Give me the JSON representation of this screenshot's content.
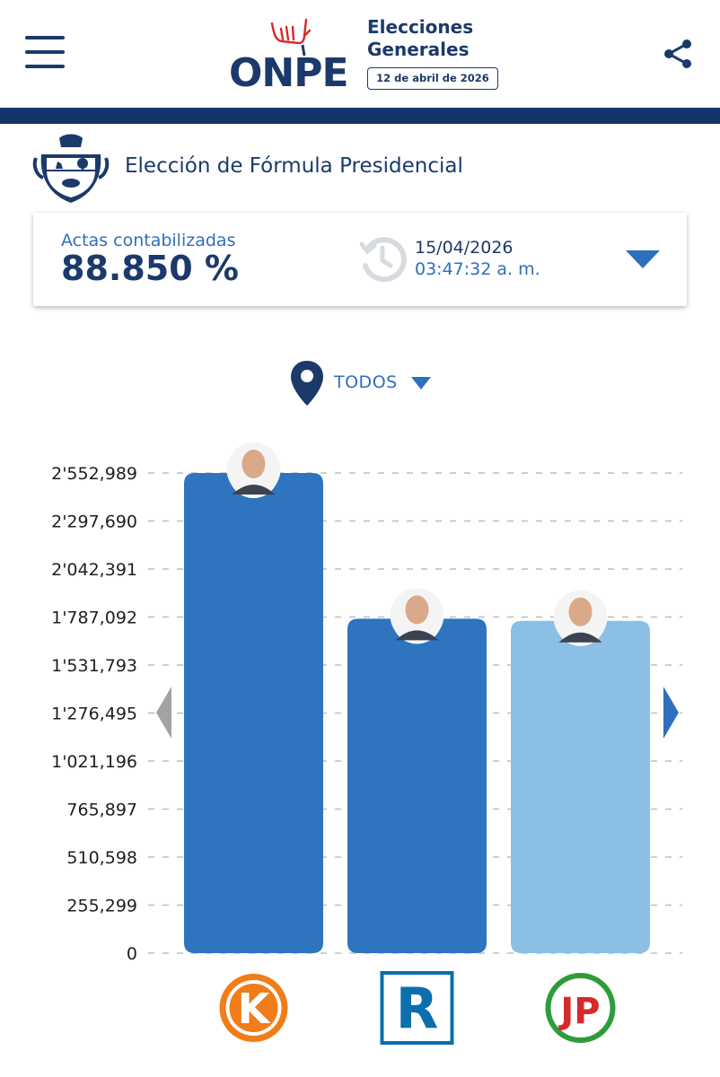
{
  "header": {
    "logo_text": "ONPE",
    "election_title_line1": "Elecciones",
    "election_title_line2": "Generales",
    "election_date": "12 de abril de 2026"
  },
  "section": {
    "title": "Elección de Fórmula Presidencial"
  },
  "stats": {
    "label": "Actas contabilizadas",
    "value": "88.850 %",
    "update_date": "15/04/2026",
    "update_time": "03:47:32 a. m."
  },
  "filter": {
    "location": "TODOS"
  },
  "colors": {
    "navy": "#1b3a6b",
    "accent_blue": "#2e6fbe",
    "bar_dark": "#2e74bf",
    "bar_light": "#8bbfe6"
  },
  "chart_data": {
    "type": "bar",
    "categories": [
      "Fuerza Popular",
      "Renovación Popular",
      "Juntos por el Perú"
    ],
    "values": [
      2552989,
      1778000,
      1767000
    ],
    "bar_colors": [
      "#2e74bf",
      "#2e74bf",
      "#8bbfe6"
    ],
    "logo_letters": [
      "K",
      "R",
      "JP"
    ],
    "yticks": [
      0,
      255299,
      510598,
      765897,
      1021196,
      1276495,
      1531793,
      1787092,
      2042391,
      2297690,
      2552989
    ],
    "ytick_labels": [
      "0",
      "255,299",
      "510,598",
      "765,897",
      "1'021,196",
      "1'276,495",
      "1'531,793",
      "1'787,092",
      "2'042,391",
      "2'297,690",
      "2'552,989"
    ],
    "ylim": [
      0,
      2552989
    ],
    "grid": true,
    "title": "",
    "xlabel": "",
    "ylabel": ""
  }
}
